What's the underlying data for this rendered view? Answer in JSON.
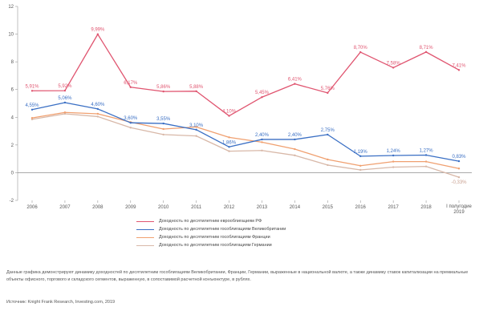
{
  "chart_data": {
    "type": "line",
    "categories": [
      "2006",
      "2007",
      "2008",
      "2009",
      "2010",
      "2011",
      "2012",
      "2013",
      "2014",
      "2015",
      "2016",
      "2017",
      "2018",
      "I полугодие 2019"
    ],
    "ylim": [
      -2,
      12
    ],
    "yticks": [
      "-2",
      "0",
      "2",
      "4",
      "6",
      "8",
      "10",
      "12"
    ],
    "series": [
      {
        "name": "Доходность по десятилетним еврооблигациям РФ",
        "color": "#e05570",
        "values": [
          5.91,
          5.92,
          9.99,
          6.17,
          5.86,
          5.88,
          4.1,
          5.45,
          6.41,
          5.76,
          8.7,
          7.58,
          8.71,
          7.41
        ],
        "labels": [
          "5,91%",
          "5,92%",
          "9,99%",
          "6,17%",
          "5,86%",
          "5,88%",
          "4,10%",
          "5,45%",
          "6,41%",
          "5,76%",
          "8,70%",
          "7,58%",
          "8,71%",
          "7,41%"
        ]
      },
      {
        "name": "Доходность по десятилетним гособлигациям Великобритании",
        "color": "#3a6fc4",
        "values": [
          4.55,
          5.06,
          4.6,
          3.6,
          3.55,
          3.1,
          1.86,
          2.4,
          2.4,
          2.75,
          1.19,
          1.24,
          1.27,
          0.83
        ],
        "labels": [
          "4,55%",
          "5,06%",
          "4,60%",
          "3,60%",
          "3,55%",
          "3,10%",
          "1,86%",
          "2,40%",
          "2,40%",
          "2,75%",
          "1,19%",
          "1,24%",
          "1,27%",
          "0,83%"
        ]
      },
      {
        "name": "Доходность по десятилетним гособлигациям Франции",
        "color": "#f0a070",
        "values": [
          3.95,
          4.35,
          4.25,
          3.65,
          3.15,
          3.3,
          2.55,
          2.2,
          1.7,
          0.95,
          0.5,
          0.8,
          0.8,
          0.3
        ],
        "labels": []
      },
      {
        "name": "Доходность по десятилетним гособлигациям Германии",
        "color": "#d8b8a8",
        "values": [
          3.85,
          4.25,
          4.05,
          3.25,
          2.75,
          2.65,
          1.55,
          1.6,
          1.25,
          0.55,
          0.2,
          0.4,
          0.45,
          -0.33
        ],
        "labels": []
      }
    ],
    "extra_labels": [
      {
        "series_index": 3,
        "point_index": 13,
        "text": "-0,33%"
      }
    ],
    "grid": false
  },
  "caption": "Данные графика демонстрируют динамику доходностей по десятилетним гособлигациям Великобритании, Франции, Германии, выраженные в национальной валюте, а также динамику ставок капитализации на премиальные объекты офисного, торгового и складского сегментов, выраженную, в сопоставимой расчетной конъюнктуре, в рублях.",
  "source": "Источник: Knight Frank Research, Investing.com, 2019"
}
